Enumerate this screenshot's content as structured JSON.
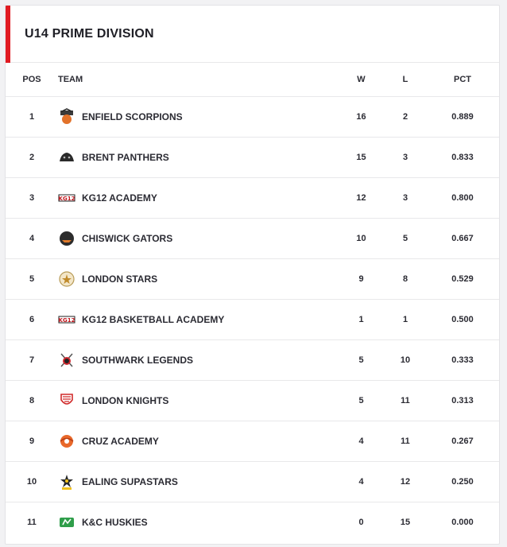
{
  "title": "U14 PRIME DIVISION",
  "columns": {
    "pos": "POS",
    "team": "TEAM",
    "w": "W",
    "l": "L",
    "pct": "PCT"
  },
  "accent_color": "#e11b22",
  "rows": [
    {
      "pos": "1",
      "name": "ENFIELD SCORPIONS",
      "logo": "scorpions-logo-icon",
      "w": "16",
      "l": "2",
      "pct": "0.889"
    },
    {
      "pos": "2",
      "name": "BRENT PANTHERS",
      "logo": "panthers-logo-icon",
      "w": "15",
      "l": "3",
      "pct": "0.833"
    },
    {
      "pos": "3",
      "name": "KG12 ACADEMY",
      "logo": "kg12-logo-icon",
      "w": "12",
      "l": "3",
      "pct": "0.800"
    },
    {
      "pos": "4",
      "name": "CHISWICK GATORS",
      "logo": "gators-logo-icon",
      "w": "10",
      "l": "5",
      "pct": "0.667"
    },
    {
      "pos": "5",
      "name": "LONDON STARS",
      "logo": "stars-logo-icon",
      "w": "9",
      "l": "8",
      "pct": "0.529"
    },
    {
      "pos": "6",
      "name": "KG12 BASKETBALL ACADEMY",
      "logo": "kg12-logo-icon",
      "w": "1",
      "l": "1",
      "pct": "0.500"
    },
    {
      "pos": "7",
      "name": "SOUTHWARK LEGENDS",
      "logo": "legends-logo-icon",
      "w": "5",
      "l": "10",
      "pct": "0.333"
    },
    {
      "pos": "8",
      "name": "LONDON KNIGHTS",
      "logo": "knights-logo-icon",
      "w": "5",
      "l": "11",
      "pct": "0.313"
    },
    {
      "pos": "9",
      "name": "CRUZ ACADEMY",
      "logo": "cruz-logo-icon",
      "w": "4",
      "l": "11",
      "pct": "0.267"
    },
    {
      "pos": "10",
      "name": "EALING SUPASTARS",
      "logo": "supastars-logo-icon",
      "w": "4",
      "l": "12",
      "pct": "0.250"
    },
    {
      "pos": "11",
      "name": "K&C HUSKIES",
      "logo": "huskies-logo-icon",
      "w": "0",
      "l": "15",
      "pct": "0.000"
    }
  ]
}
